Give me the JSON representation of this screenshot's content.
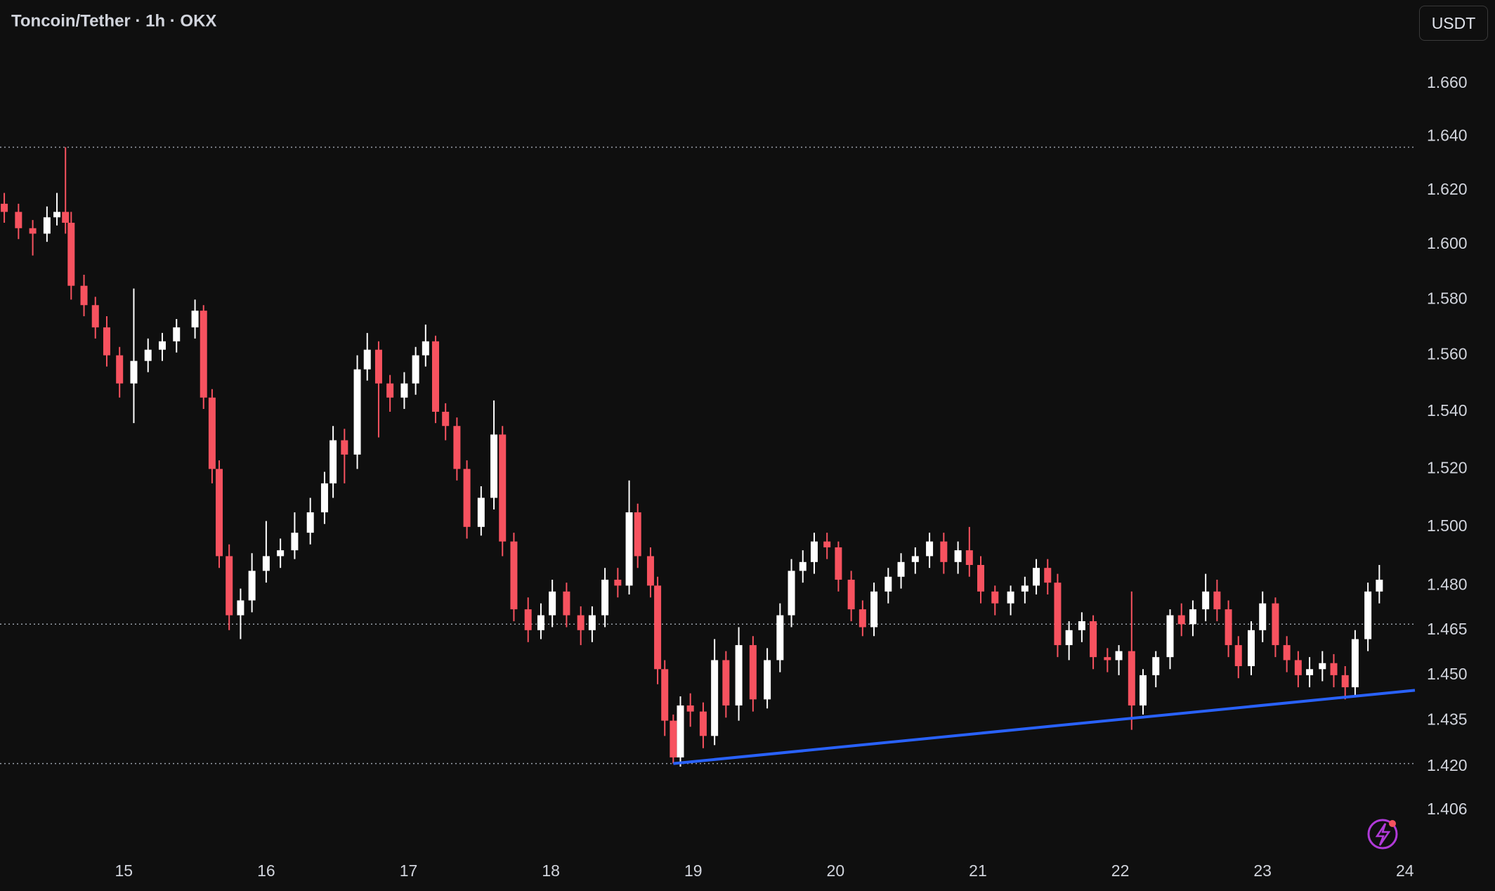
{
  "chart_data": {
    "type": "candlestick",
    "title": "Toncoin/Tether · 1h · OKX",
    "currency": "USDT",
    "up_color": "#ffffff",
    "down_color": "#f7525f",
    "log_scale": true,
    "xlim": [
      14.13,
      24.07
    ],
    "xticks": [
      15,
      16,
      17,
      18,
      19,
      20,
      21,
      22,
      23,
      24
    ],
    "ylim": [
      1.392,
      1.692
    ],
    "yticks": [
      {
        "value": 1.66,
        "label": "1.660"
      },
      {
        "value": 1.64,
        "label": "1.640"
      },
      {
        "value": 1.62,
        "label": "1.620"
      },
      {
        "value": 1.6,
        "label": "1.600"
      },
      {
        "value": 1.58,
        "label": "1.580"
      },
      {
        "value": 1.56,
        "label": "1.560"
      },
      {
        "value": 1.54,
        "label": "1.540"
      },
      {
        "value": 1.52,
        "label": "1.520"
      },
      {
        "value": 1.5,
        "label": "1.500"
      },
      {
        "value": 1.48,
        "label": "1.480"
      },
      1.465,
      {
        "value": 1.45,
        "label": "1.450"
      },
      1.435,
      {
        "value": 1.42,
        "label": "1.420"
      },
      1.406
    ],
    "horizontal_lines": [
      1.636,
      1.467,
      1.421
    ],
    "trendline": {
      "color": "#2962ff",
      "x": [
        18.86,
        24.07
      ],
      "y": [
        1.421,
        1.445
      ]
    },
    "x": [
      14.16,
      14.26,
      14.36,
      14.46,
      14.53,
      14.59,
      14.63,
      14.72,
      14.8,
      14.88,
      14.97,
      15.07,
      15.17,
      15.27,
      15.37,
      15.5,
      15.56,
      15.62,
      15.67,
      15.74,
      15.82,
      15.9,
      16.0,
      16.1,
      16.2,
      16.31,
      16.41,
      16.47,
      16.55,
      16.64,
      16.71,
      16.79,
      16.87,
      16.97,
      17.05,
      17.12,
      17.19,
      17.26,
      17.34,
      17.41,
      17.51,
      17.6,
      17.66,
      17.74,
      17.84,
      17.93,
      18.01,
      18.11,
      18.21,
      18.29,
      18.38,
      18.47,
      18.55,
      18.61,
      18.7,
      18.75,
      18.8,
      18.86,
      18.91,
      18.98,
      19.07,
      19.15,
      19.23,
      19.32,
      19.42,
      19.52,
      19.61,
      19.69,
      19.77,
      19.85,
      19.94,
      20.02,
      20.11,
      20.19,
      20.27,
      20.37,
      20.46,
      20.56,
      20.66,
      20.76,
      20.86,
      20.94,
      21.02,
      21.12,
      21.23,
      21.33,
      21.41,
      21.49,
      21.56,
      21.64,
      21.73,
      21.81,
      21.91,
      21.99,
      22.08,
      22.16,
      22.25,
      22.35,
      22.43,
      22.51,
      22.6,
      22.68,
      22.76,
      22.83,
      22.92,
      23.0,
      23.09,
      23.17,
      23.25,
      23.33,
      23.42,
      23.5,
      23.58,
      23.65,
      23.74,
      23.82
    ],
    "open": [
      1.615,
      1.612,
      1.606,
      1.604,
      1.61,
      1.612,
      1.608,
      1.585,
      1.578,
      1.57,
      1.56,
      1.55,
      1.558,
      1.562,
      1.565,
      1.57,
      1.576,
      1.545,
      1.52,
      1.49,
      1.47,
      1.475,
      1.485,
      1.49,
      1.492,
      1.498,
      1.505,
      1.515,
      1.53,
      1.525,
      1.555,
      1.562,
      1.55,
      1.545,
      1.55,
      1.56,
      1.565,
      1.54,
      1.535,
      1.52,
      1.5,
      1.51,
      1.532,
      1.495,
      1.472,
      1.465,
      1.47,
      1.478,
      1.47,
      1.465,
      1.47,
      1.482,
      1.48,
      1.505,
      1.49,
      1.48,
      1.452,
      1.435,
      1.423,
      1.44,
      1.438,
      1.43,
      1.455,
      1.44,
      1.46,
      1.442,
      1.455,
      1.47,
      1.485,
      1.488,
      1.495,
      1.493,
      1.482,
      1.472,
      1.466,
      1.478,
      1.483,
      1.488,
      1.49,
      1.495,
      1.488,
      1.492,
      1.487,
      1.478,
      1.474,
      1.478,
      1.48,
      1.486,
      1.481,
      1.46,
      1.465,
      1.468,
      1.456,
      1.455,
      1.458,
      1.44,
      1.45,
      1.456,
      1.47,
      1.467,
      1.472,
      1.478,
      1.472,
      1.46,
      1.453,
      1.465,
      1.474,
      1.46,
      1.455,
      1.45,
      1.452,
      1.454,
      1.45,
      1.446,
      1.462,
      1.478
    ],
    "high": [
      1.619,
      1.615,
      1.609,
      1.614,
      1.619,
      1.636,
      1.612,
      1.589,
      1.581,
      1.574,
      1.563,
      1.584,
      1.566,
      1.568,
      1.573,
      1.58,
      1.578,
      1.548,
      1.523,
      1.494,
      1.479,
      1.491,
      1.502,
      1.496,
      1.505,
      1.51,
      1.519,
      1.535,
      1.534,
      1.56,
      1.568,
      1.565,
      1.553,
      1.554,
      1.563,
      1.571,
      1.567,
      1.543,
      1.538,
      1.523,
      1.514,
      1.544,
      1.535,
      1.498,
      1.476,
      1.474,
      1.482,
      1.481,
      1.473,
      1.473,
      1.486,
      1.486,
      1.516,
      1.508,
      1.493,
      1.483,
      1.455,
      1.437,
      1.443,
      1.444,
      1.441,
      1.462,
      1.458,
      1.466,
      1.463,
      1.459,
      1.474,
      1.489,
      1.492,
      1.498,
      1.498,
      1.495,
      1.485,
      1.475,
      1.481,
      1.486,
      1.491,
      1.493,
      1.498,
      1.498,
      1.495,
      1.5,
      1.49,
      1.48,
      1.48,
      1.483,
      1.489,
      1.489,
      1.484,
      1.468,
      1.471,
      1.47,
      1.459,
      1.46,
      1.478,
      1.452,
      1.458,
      1.472,
      1.474,
      1.475,
      1.484,
      1.482,
      1.475,
      1.463,
      1.468,
      1.478,
      1.476,
      1.463,
      1.458,
      1.456,
      1.458,
      1.457,
      1.453,
      1.465,
      1.481,
      1.487
    ],
    "low": [
      1.608,
      1.602,
      1.596,
      1.601,
      1.607,
      1.604,
      1.58,
      1.574,
      1.566,
      1.556,
      1.545,
      1.536,
      1.554,
      1.558,
      1.561,
      1.566,
      1.541,
      1.515,
      1.486,
      1.465,
      1.462,
      1.471,
      1.481,
      1.486,
      1.489,
      1.494,
      1.501,
      1.51,
      1.515,
      1.52,
      1.551,
      1.531,
      1.54,
      1.541,
      1.546,
      1.556,
      1.536,
      1.53,
      1.516,
      1.496,
      1.497,
      1.506,
      1.49,
      1.468,
      1.461,
      1.462,
      1.466,
      1.466,
      1.46,
      1.461,
      1.466,
      1.476,
      1.477,
      1.486,
      1.476,
      1.447,
      1.43,
      1.421,
      1.42,
      1.433,
      1.426,
      1.427,
      1.436,
      1.435,
      1.438,
      1.439,
      1.451,
      1.466,
      1.481,
      1.484,
      1.489,
      1.478,
      1.468,
      1.463,
      1.463,
      1.474,
      1.479,
      1.484,
      1.486,
      1.484,
      1.484,
      1.483,
      1.474,
      1.47,
      1.47,
      1.474,
      1.477,
      1.477,
      1.456,
      1.455,
      1.461,
      1.452,
      1.451,
      1.45,
      1.432,
      1.437,
      1.446,
      1.452,
      1.463,
      1.463,
      1.468,
      1.468,
      1.456,
      1.449,
      1.45,
      1.461,
      1.456,
      1.451,
      1.446,
      1.446,
      1.448,
      1.446,
      1.442,
      1.443,
      1.458,
      1.474
    ],
    "close": [
      1.612,
      1.606,
      1.604,
      1.61,
      1.612,
      1.608,
      1.585,
      1.578,
      1.57,
      1.56,
      1.55,
      1.558,
      1.562,
      1.565,
      1.57,
      1.576,
      1.545,
      1.52,
      1.49,
      1.47,
      1.475,
      1.485,
      1.49,
      1.492,
      1.498,
      1.505,
      1.515,
      1.53,
      1.525,
      1.555,
      1.562,
      1.55,
      1.545,
      1.55,
      1.56,
      1.565,
      1.54,
      1.535,
      1.52,
      1.5,
      1.51,
      1.532,
      1.495,
      1.472,
      1.465,
      1.47,
      1.478,
      1.47,
      1.465,
      1.47,
      1.482,
      1.48,
      1.505,
      1.49,
      1.48,
      1.452,
      1.435,
      1.423,
      1.44,
      1.438,
      1.43,
      1.455,
      1.44,
      1.46,
      1.442,
      1.455,
      1.47,
      1.485,
      1.488,
      1.495,
      1.493,
      1.482,
      1.472,
      1.466,
      1.478,
      1.483,
      1.488,
      1.49,
      1.495,
      1.488,
      1.492,
      1.487,
      1.478,
      1.474,
      1.478,
      1.48,
      1.486,
      1.481,
      1.46,
      1.465,
      1.468,
      1.456,
      1.455,
      1.458,
      1.44,
      1.45,
      1.456,
      1.47,
      1.467,
      1.472,
      1.478,
      1.472,
      1.46,
      1.453,
      1.465,
      1.474,
      1.46,
      1.455,
      1.45,
      1.452,
      1.454,
      1.45,
      1.446,
      1.462,
      1.478,
      1.482
    ]
  }
}
